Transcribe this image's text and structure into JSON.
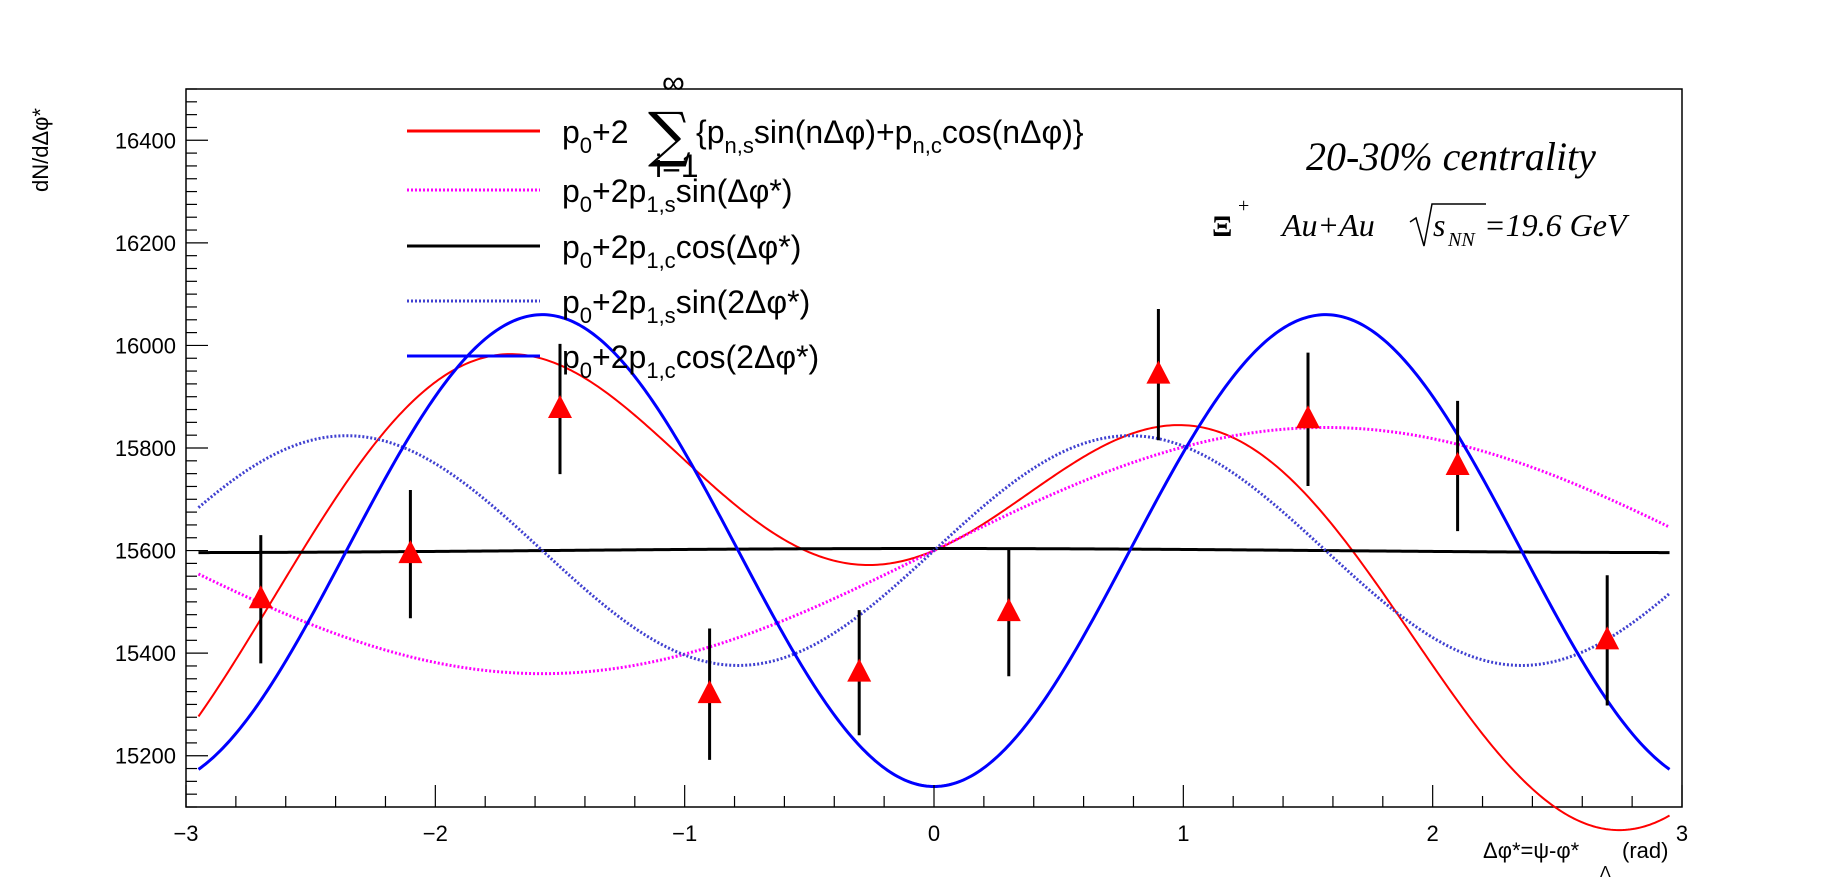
{
  "chart_data": {
    "type": "scatter",
    "title": "",
    "xlabel": "Δφ*=ψ-φ*",
    "xlabel_sub": "Λ",
    "xlabel_unit": "(rad)",
    "ylabel": "dN/dΔφ*",
    "xlim": [
      -3,
      3
    ],
    "ylim": [
      15100,
      16500
    ],
    "x_ticks": [
      -3,
      -2,
      -1,
      0,
      1,
      2,
      3
    ],
    "x_tick_labels": [
      "−3",
      "−2",
      "−1",
      "0",
      "1",
      "2",
      "3"
    ],
    "y_ticks": [
      15200,
      15400,
      15600,
      15800,
      16000,
      16200,
      16400
    ],
    "y_tick_labels": [
      "15200",
      "15400",
      "15600",
      "15800",
      "16000",
      "16200",
      "16400"
    ],
    "grid": false,
    "legend_position": "top-center",
    "series": [
      {
        "kind": "points",
        "color": "#ff0000",
        "marker": "triangle",
        "x": [
          -2.7,
          -2.1,
          -1.5,
          -0.9,
          -0.3,
          0.3,
          0.9,
          1.5,
          2.1,
          2.7
        ],
        "y": [
          15505,
          15593,
          15876,
          15320,
          15362,
          15480,
          15943,
          15856,
          15765,
          15425
        ],
        "err": [
          125,
          125,
          127,
          128,
          122,
          125,
          128,
          130,
          127,
          127
        ]
      },
      {
        "kind": "curve",
        "color": "#ff0000",
        "style": "solid",
        "p0": 15600,
        "a1": -77,
        "b1": 110,
        "a2": 90,
        "b2": -110
      },
      {
        "kind": "curve",
        "color": "#ff00ff",
        "style": "dotted",
        "p0": 15600,
        "a1": 120,
        "b1": 0,
        "a2": 0,
        "b2": 0
      },
      {
        "kind": "curve",
        "color": "#000000",
        "style": "solid",
        "p0": 15600,
        "a1": 0,
        "b1": 2,
        "a2": 0,
        "b2": 0
      },
      {
        "kind": "curve",
        "color": "#4040d0",
        "style": "dotted",
        "p0": 15600,
        "a1": 0,
        "b1": 0,
        "a2": 112,
        "b2": 0
      },
      {
        "kind": "curve",
        "color": "#0000ff",
        "style": "solid",
        "p0": 15600,
        "a1": 0,
        "b1": 0,
        "a2": 0,
        "b2": -230
      }
    ],
    "legend": [
      {
        "prefix": "p",
        "sub0": "0",
        "mid": "+2",
        "sum_sub": "i=1",
        "sum_sup": "∞",
        "text_a": "{p",
        "sub_a": "n,s",
        "text_b": "sin(nΔφ)+p",
        "sub_b": "n,c",
        "text_c": "cos(nΔφ)}"
      },
      {
        "prefix": "p",
        "sub0": "0",
        "mid": "+2p",
        "sub1": "1,s",
        "tail": "sin(Δφ*)"
      },
      {
        "prefix": "p",
        "sub0": "0",
        "mid": "+2p",
        "sub1": "1,c",
        "tail": "cos(Δφ*)"
      },
      {
        "prefix": "p",
        "sub0": "0",
        "mid": "+2p",
        "sub1": "1,s",
        "tail": "sin(2Δφ*)"
      },
      {
        "prefix": "p",
        "sub0": "0",
        "mid": "+2p",
        "sub1": "1,c",
        "tail": "cos(2Δφ*)"
      }
    ],
    "annotations": {
      "centrality": "20-30% centrality",
      "particle": "Ξ",
      "particle_sup": "+",
      "system": "Au+Au",
      "sqrt_s": "s",
      "sqrt_sub": "NN",
      "energy": "=19.6 GeV"
    }
  }
}
